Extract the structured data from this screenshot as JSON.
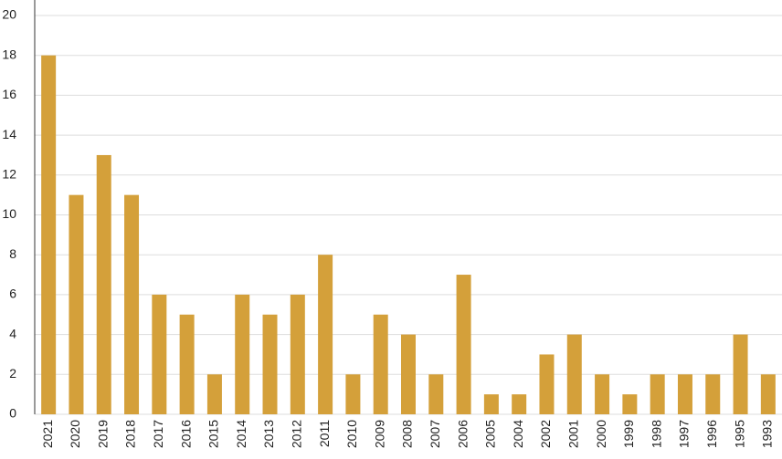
{
  "chart_data": {
    "type": "bar",
    "categories": [
      "2021",
      "2020",
      "2019",
      "2018",
      "2017",
      "2016",
      "2015",
      "2014",
      "2013",
      "2012",
      "2011",
      "2010",
      "2009",
      "2008",
      "2007",
      "2006",
      "2005",
      "2004",
      "2002",
      "2001",
      "2000",
      "1999",
      "1998",
      "1997",
      "1996",
      "1995",
      "1993"
    ],
    "values": [
      18,
      11,
      13,
      11,
      6,
      5,
      2,
      6,
      5,
      6,
      8,
      2,
      5,
      4,
      2,
      7,
      1,
      1,
      3,
      4,
      2,
      1,
      2,
      2,
      2,
      4,
      2
    ],
    "color": "#d4a03a",
    "ylim": [
      0,
      20
    ],
    "yticks": [
      0,
      2,
      4,
      6,
      8,
      10,
      12,
      14,
      16,
      18,
      20
    ],
    "grid": true
  }
}
